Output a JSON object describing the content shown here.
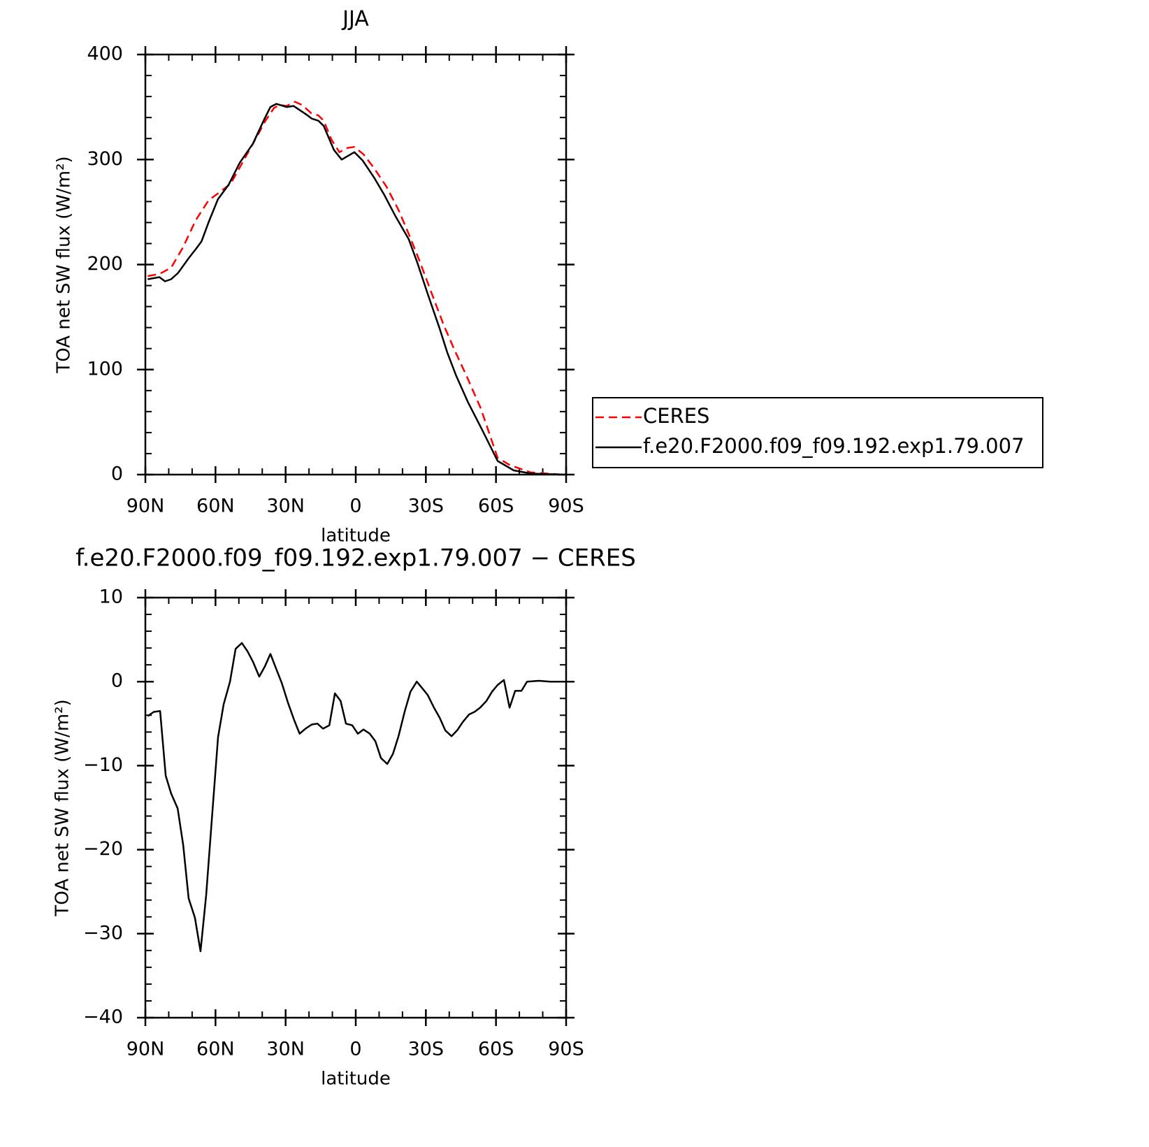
{
  "chart_data": [
    {
      "type": "line",
      "title": "JJA",
      "xlabel": "latitude",
      "ylabel": "TOA net SW flux (W/m²)",
      "xlim": [
        90,
        -90
      ],
      "xticks": [
        {
          "value": 90,
          "label": "90N"
        },
        {
          "value": 60,
          "label": "60N"
        },
        {
          "value": 30,
          "label": "30N"
        },
        0,
        {
          "value": -30,
          "label": "30S"
        },
        {
          "value": -60,
          "label": "60S"
        },
        {
          "value": -90,
          "label": "90S"
        }
      ],
      "ylim": [
        0,
        400
      ],
      "yticks": [
        0,
        100,
        200,
        300,
        400
      ],
      "legend": "right",
      "series": [
        {
          "name": "CERES",
          "color": "#ff0000",
          "dash": true,
          "x": [
            89,
            84,
            79,
            74,
            68.5,
            63,
            57,
            53.5,
            49,
            43,
            38.6,
            35,
            32.6,
            29.6,
            26,
            23,
            19,
            16,
            13.7,
            10.4,
            7,
            3.6,
            0.6,
            -3.3,
            -7.8,
            -13.2,
            -18.3,
            -22.7,
            -27.2,
            -32.6,
            -37.7,
            -42.2,
            -47.6,
            -53.5,
            -60.7,
            -66,
            -75,
            -88.8
          ],
          "values": [
            189,
            191,
            197,
            216,
            242,
            261,
            271,
            277,
            295,
            319,
            337,
            349,
            352,
            351,
            355,
            352,
            344,
            342,
            337,
            319,
            307,
            311,
            312,
            305,
            292,
            274,
            252,
            229,
            204,
            172,
            142,
            119,
            93,
            63,
            16,
            9,
            2,
            0
          ]
        },
        {
          "name": "f.e20.F2000.f09_f09.192.exp1.79.007",
          "color": "#000000",
          "dash": false,
          "x": [
            89,
            84,
            81.6,
            79,
            76,
            71.5,
            68,
            66,
            63,
            59,
            54.4,
            49.6,
            44,
            39,
            36.5,
            34,
            29.6,
            26.6,
            20.6,
            18.8,
            16,
            13.7,
            9.3,
            6,
            0.6,
            -3,
            -7.8,
            -12.3,
            -17,
            -22.7,
            -26.3,
            -30.8,
            -35.9,
            -39.2,
            -43,
            -48,
            -54,
            -60.7,
            -67.6,
            -75,
            -88.8
          ],
          "values": [
            186,
            188,
            184,
            186,
            192,
            206,
            216,
            222,
            240,
            262,
            276,
            297,
            315,
            339,
            350,
            353,
            350,
            351,
            342,
            339,
            337,
            332,
            309,
            300,
            307,
            299,
            283,
            266,
            246,
            224,
            202,
            172,
            139,
            116,
            94,
            69,
            43,
            13,
            4,
            1,
            0
          ]
        }
      ]
    },
    {
      "type": "line",
      "title": "f.e20.F2000.f09_f09.192.exp1.79.007 − CERES",
      "xlabel": "latitude",
      "ylabel": "TOA net SW flux (W/m²)",
      "xlim": [
        90,
        -90
      ],
      "xticks": [
        {
          "value": 90,
          "label": "90N"
        },
        {
          "value": 60,
          "label": "60N"
        },
        {
          "value": 30,
          "label": "30N"
        },
        0,
        {
          "value": -30,
          "label": "30S"
        },
        {
          "value": -60,
          "label": "60S"
        },
        {
          "value": -90,
          "label": "90S"
        }
      ],
      "ylim": [
        -40,
        10
      ],
      "yticks": [
        {
          "value": -40,
          "label": "−40"
        },
        {
          "value": -30,
          "label": "−30"
        },
        {
          "value": -20,
          "label": "−20"
        },
        {
          "value": -10,
          "label": "−10"
        },
        0,
        10
      ],
      "series": [
        {
          "color": "#000000",
          "dash": false,
          "x": [
            89,
            86.4,
            83.7,
            81.3,
            79,
            76.2,
            73.8,
            71.5,
            68.8,
            66.4,
            64,
            61.3,
            58.9,
            56.5,
            53.8,
            51.4,
            48.7,
            46.3,
            44,
            41.3,
            38.9,
            36.5,
            34,
            31.6,
            29,
            26.3,
            24,
            21.5,
            18.8,
            16.4,
            14,
            11.3,
            8.9,
            6.5,
            4.2,
            1.5,
            -0.9,
            -3.3,
            -6,
            -8.4,
            -10.8,
            -13.5,
            -15.9,
            -18.3,
            -21,
            -23.4,
            -26.1,
            -28.5,
            -30.8,
            -33.5,
            -35.9,
            -38.3,
            -41,
            -43.4,
            -45.8,
            -48.5,
            -50.8,
            -53.2,
            -55.9,
            -58.3,
            -60.7,
            -63.4,
            -65.8,
            -68.2,
            -70.9,
            -73.3,
            -78.4,
            -83.2,
            -88.8
          ],
          "values": [
            -4.1,
            -3.6,
            -3.5,
            -11.2,
            -13.3,
            -15.1,
            -19.5,
            -25.8,
            -28.1,
            -32.1,
            -25.4,
            -15.4,
            -6.6,
            -2.7,
            0,
            3.9,
            4.6,
            3.6,
            2.4,
            0.6,
            1.8,
            3.3,
            1.5,
            -0.2,
            -2.5,
            -4.6,
            -6.2,
            -5.6,
            -5.1,
            -5,
            -5.6,
            -5.2,
            -1.4,
            -2.3,
            -5,
            -5.2,
            -6.2,
            -5.7,
            -6.2,
            -7.1,
            -9.1,
            -9.8,
            -8.6,
            -6.5,
            -3.5,
            -1.2,
            0,
            -0.8,
            -1.6,
            -3.1,
            -4.3,
            -5.8,
            -6.5,
            -5.8,
            -4.8,
            -3.9,
            -3.6,
            -3.1,
            -2.3,
            -1.2,
            -0.4,
            0.2,
            -3.1,
            -1.1,
            -1.1,
            0,
            0.1,
            0,
            0
          ]
        }
      ]
    }
  ]
}
